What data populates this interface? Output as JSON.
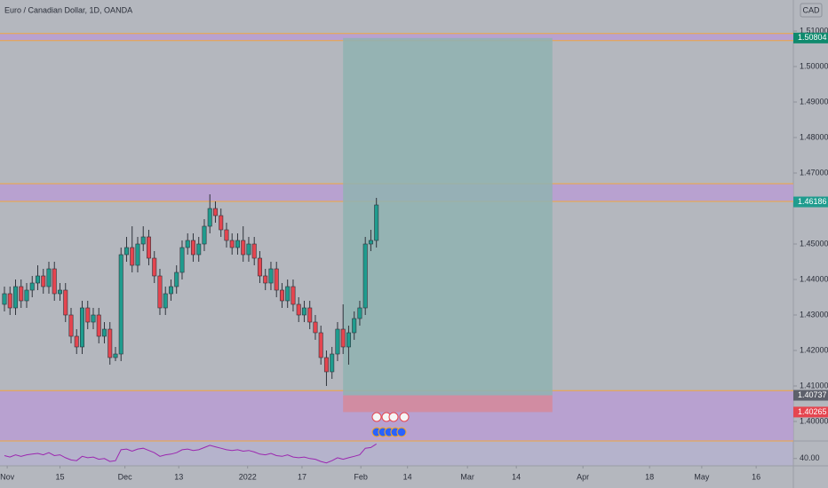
{
  "chart_data": {
    "type": "candlestick",
    "title": "Euro / Canadian Dollar, 1D, OANDA",
    "currency": "CAD",
    "open": [
      1.433,
      1.436,
      1.432,
      1.438,
      1.434,
      1.437,
      1.439,
      1.441,
      1.438,
      1.443,
      1.436,
      1.437,
      1.43,
      1.424,
      1.421,
      1.432,
      1.428,
      1.43,
      1.424,
      1.426,
      1.418,
      1.419,
      1.447,
      1.449,
      1.444,
      1.45,
      1.452,
      1.446,
      1.441,
      1.432,
      1.436,
      1.438,
      1.442,
      1.449,
      1.451,
      1.447,
      1.45,
      1.455,
      1.46,
      1.458,
      1.454,
      1.451,
      1.449,
      1.451,
      1.447,
      1.45,
      1.446,
      1.441,
      1.439,
      1.443,
      1.437,
      1.434,
      1.438,
      1.433,
      1.43,
      1.432,
      1.428,
      1.425,
      1.418,
      1.414,
      1.419,
      1.426,
      1.421,
      1.425,
      1.429,
      1.432,
      1.45,
      1.451
    ],
    "high": [
      1.438,
      1.438,
      1.44,
      1.44,
      1.439,
      1.441,
      1.444,
      1.443,
      1.445,
      1.445,
      1.439,
      1.439,
      1.432,
      1.426,
      1.434,
      1.434,
      1.432,
      1.432,
      1.428,
      1.428,
      1.421,
      1.449,
      1.452,
      1.455,
      1.452,
      1.455,
      1.454,
      1.448,
      1.443,
      1.438,
      1.44,
      1.444,
      1.451,
      1.453,
      1.453,
      1.452,
      1.457,
      1.464,
      1.462,
      1.46,
      1.456,
      1.453,
      1.453,
      1.455,
      1.452,
      1.452,
      1.448,
      1.443,
      1.445,
      1.445,
      1.439,
      1.44,
      1.44,
      1.435,
      1.434,
      1.434,
      1.43,
      1.427,
      1.42,
      1.421,
      1.428,
      1.433,
      1.427,
      1.431,
      1.434,
      1.452,
      1.454,
      1.463
    ],
    "low": [
      1.431,
      1.43,
      1.43,
      1.432,
      1.432,
      1.435,
      1.437,
      1.436,
      1.436,
      1.434,
      1.434,
      1.428,
      1.422,
      1.419,
      1.419,
      1.426,
      1.426,
      1.422,
      1.422,
      1.416,
      1.417,
      1.417,
      1.445,
      1.442,
      1.442,
      1.448,
      1.444,
      1.439,
      1.43,
      1.43,
      1.434,
      1.436,
      1.44,
      1.447,
      1.445,
      1.445,
      1.448,
      1.453,
      1.456,
      1.452,
      1.449,
      1.447,
      1.447,
      1.445,
      1.445,
      1.444,
      1.439,
      1.437,
      1.437,
      1.435,
      1.432,
      1.432,
      1.431,
      1.428,
      1.428,
      1.426,
      1.423,
      1.416,
      1.41,
      1.412,
      1.417,
      1.419,
      1.416,
      1.423,
      1.427,
      1.43,
      1.448,
      1.449
    ],
    "close": [
      1.436,
      1.432,
      1.438,
      1.434,
      1.437,
      1.439,
      1.441,
      1.438,
      1.443,
      1.436,
      1.437,
      1.43,
      1.424,
      1.421,
      1.432,
      1.428,
      1.43,
      1.424,
      1.426,
      1.418,
      1.419,
      1.447,
      1.449,
      1.444,
      1.45,
      1.452,
      1.446,
      1.441,
      1.432,
      1.436,
      1.438,
      1.442,
      1.449,
      1.451,
      1.447,
      1.45,
      1.455,
      1.46,
      1.458,
      1.454,
      1.451,
      1.449,
      1.451,
      1.447,
      1.45,
      1.446,
      1.441,
      1.439,
      1.443,
      1.437,
      1.434,
      1.438,
      1.433,
      1.43,
      1.432,
      1.428,
      1.425,
      1.418,
      1.414,
      1.419,
      1.426,
      1.421,
      1.425,
      1.429,
      1.432,
      1.45,
      1.451,
      1.461
    ],
    "up_color": "#1f9c8e",
    "down_color": "#e5454f",
    "xlim": [
      -0.8,
      142.1
    ],
    "xticks": [
      {
        "value": 0.5,
        "label": "Nov"
      },
      {
        "value": 10,
        "label": "15"
      },
      {
        "value": 21.7,
        "label": "Dec"
      },
      {
        "value": 31.4,
        "label": "13"
      },
      {
        "value": 43.8,
        "label": "2022"
      },
      {
        "value": 53.6,
        "label": "17"
      },
      {
        "value": 64.2,
        "label": "Feb"
      },
      {
        "value": 72.6,
        "label": "14"
      },
      {
        "value": 83.4,
        "label": "Mar"
      },
      {
        "value": 92.2,
        "label": "14"
      },
      {
        "value": 104.2,
        "label": "Apr"
      },
      {
        "value": 116.2,
        "label": "18"
      },
      {
        "value": 125.6,
        "label": "May"
      },
      {
        "value": 135.4,
        "label": "16"
      }
    ],
    "ylim": [
      1.3945,
      1.51875
    ],
    "yticks": [
      {
        "value": 1.4,
        "label": "1.40000"
      },
      {
        "value": 1.41,
        "label": "1.41000"
      },
      {
        "value": 1.42,
        "label": "1.42000"
      },
      {
        "value": 1.43,
        "label": "1.43000"
      },
      {
        "value": 1.44,
        "label": "1.44000"
      },
      {
        "value": 1.45,
        "label": "1.45000"
      },
      {
        "value": 1.47,
        "label": "1.47000"
      },
      {
        "value": 1.48,
        "label": "1.48000"
      },
      {
        "value": 1.49,
        "label": "1.49000"
      },
      {
        "value": 1.5,
        "label": "1.50000"
      },
      {
        "value": 1.51,
        "label": "1.51000"
      }
    ],
    "zones": [
      {
        "low": 1.5073,
        "high": 1.5093,
        "color": "#b99ad6"
      },
      {
        "low": 1.462,
        "high": 1.467,
        "color": "#b99ad6"
      },
      {
        "low": 1.3945,
        "high": 1.4087,
        "color": "#b99ad6"
      }
    ],
    "position": {
      "start": 61,
      "end": 98.7,
      "entry": 1.40737,
      "target": 1.50804,
      "stop": 1.40265,
      "profit_color": "#8fb3b1",
      "loss_color": "#d48a9c"
    },
    "price_labels": [
      {
        "value": 1.50804,
        "color": "#0f8a6e"
      },
      {
        "value": 1.46186,
        "color": "#1f9c8e"
      },
      {
        "value": 1.40737,
        "color": "#5d606b"
      },
      {
        "value": 1.40265,
        "color": "#e5454f"
      }
    ],
    "rsi": {
      "values": [
        44,
        42,
        45,
        43,
        45,
        46,
        47,
        45,
        48,
        44,
        45,
        41,
        38,
        37,
        43,
        41,
        42,
        39,
        40,
        36,
        37,
        52,
        53,
        50,
        53,
        54,
        51,
        48,
        43,
        45,
        46,
        48,
        52,
        53,
        51,
        52,
        55,
        58,
        56,
        54,
        52,
        51,
        52,
        50,
        51,
        49,
        46,
        45,
        47,
        44,
        43,
        45,
        42,
        41,
        42,
        40,
        39,
        36,
        34,
        37,
        41,
        39,
        41,
        43,
        45,
        54,
        55,
        60
      ],
      "color": "#9c27b0",
      "ylim": [
        30,
        64
      ],
      "yticks": [
        {
          "value": 40,
          "label": "40.00"
        }
      ]
    }
  }
}
